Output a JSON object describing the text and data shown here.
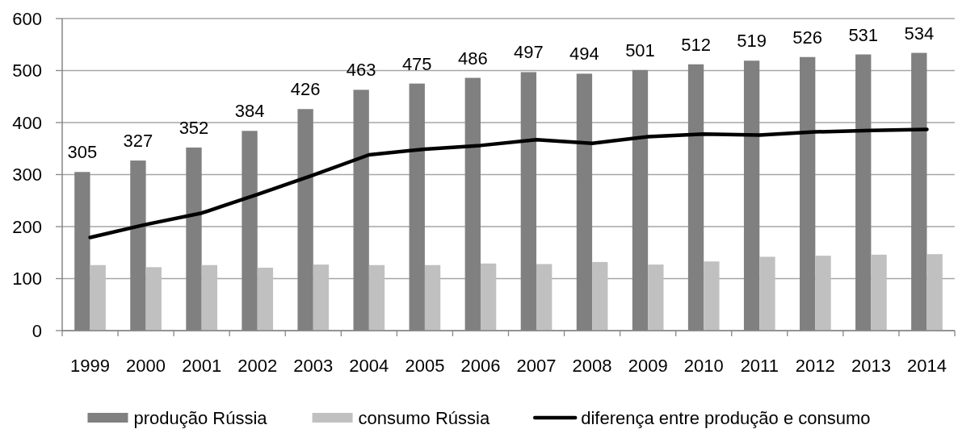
{
  "chart_data": {
    "type": "bar",
    "categories": [
      "1999",
      "2000",
      "2001",
      "2002",
      "2003",
      "2004",
      "2005",
      "2006",
      "2007",
      "2008",
      "2009",
      "2010",
      "2011",
      "2012",
      "2013",
      "2014"
    ],
    "series": [
      {
        "name": "produção Rússia",
        "color": "#808080",
        "values": [
          305,
          327,
          352,
          384,
          426,
          463,
          475,
          486,
          497,
          494,
          501,
          512,
          519,
          526,
          531,
          534
        ],
        "value_labels": [
          "305",
          "327",
          "352",
          "384",
          "426",
          "463",
          "475",
          "486",
          "497",
          "494",
          "501",
          "512",
          "519",
          "526",
          "531",
          "534"
        ]
      },
      {
        "name": "consumo Rússia",
        "color": "#c0c0c0",
        "values": [
          126,
          122,
          126,
          121,
          127,
          126,
          126,
          129,
          128,
          132,
          127,
          133,
          142,
          144,
          146,
          147
        ]
      },
      {
        "name": "diferença entre produção e consumo",
        "type": "line",
        "color": "#000000",
        "values": [
          179,
          204,
          226,
          262,
          299,
          338,
          349,
          356,
          367,
          360,
          373,
          378,
          376,
          382,
          385,
          387
        ]
      }
    ],
    "ylim": [
      0,
      600
    ],
    "yticks": [
      0,
      100,
      200,
      300,
      400,
      500,
      600
    ],
    "grid": "y",
    "legend": "bottom"
  }
}
